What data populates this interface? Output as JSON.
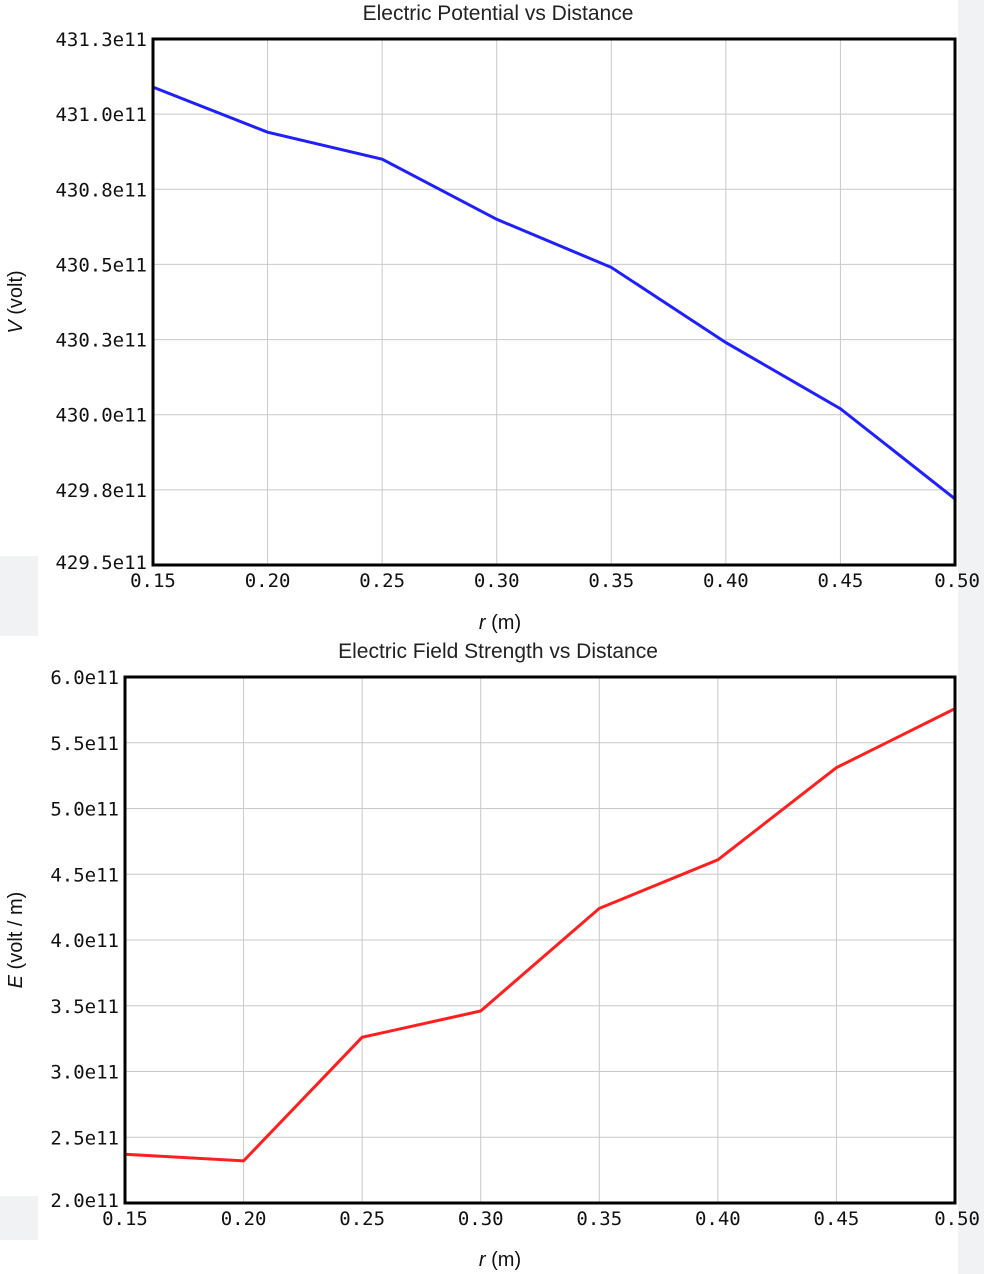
{
  "chart_data": [
    {
      "type": "line",
      "title": "Electric Potential vs Distance",
      "xlabel_var": "r",
      "xlabel_unit": " (m)",
      "ylabel_var": "V",
      "ylabel_unit": " (volt)",
      "x_ticks": [
        "0.15",
        "0.20",
        "0.25",
        "0.30",
        "0.35",
        "0.40",
        "0.45",
        "0.50"
      ],
      "y_ticks": [
        "429.5e11",
        "429.8e11",
        "430.0e11",
        "430.3e11",
        "430.5e11",
        "430.8e11",
        "431.0e11",
        "431.3e11"
      ],
      "xlim": [
        0.15,
        0.5
      ],
      "ylim": [
        42950000000000.0,
        43125000000000.0
      ],
      "grid": true,
      "series": [
        {
          "color": "#1f1fff",
          "x": [
            0.15,
            0.2,
            0.25,
            0.3,
            0.35,
            0.4,
            0.45,
            0.5
          ],
          "y": [
            43109000000000.0,
            43094000000000.0,
            43085000000000.0,
            43065000000000.0,
            43049000000000.0,
            43024000000000.0,
            43002000000000.0,
            42972000000000.0
          ]
        }
      ]
    },
    {
      "type": "line",
      "title": "Electric Field Strength vs Distance",
      "xlabel_var": "r",
      "xlabel_unit": " (m)",
      "ylabel_var": "E",
      "ylabel_unit": " (volt / m)",
      "x_ticks": [
        "0.15",
        "0.20",
        "0.25",
        "0.30",
        "0.35",
        "0.40",
        "0.45",
        "0.50"
      ],
      "y_ticks": [
        "2.0e11",
        "2.5e11",
        "3.0e11",
        "3.5e11",
        "4.0e11",
        "4.5e11",
        "5.0e11",
        "5.5e11",
        "6.0e11"
      ],
      "xlim": [
        0.15,
        0.5
      ],
      "ylim": [
        200000000000.0,
        600000000000.0
      ],
      "grid": true,
      "series": [
        {
          "color": "#ff1f1f",
          "x": [
            0.15,
            0.2,
            0.25,
            0.3,
            0.35,
            0.4,
            0.45,
            0.5
          ],
          "y": [
            237000000000.0,
            232000000000.0,
            326000000000.0,
            346000000000.0,
            424000000000.0,
            461000000000.0,
            531000000000.0,
            576000000000.0
          ]
        }
      ]
    }
  ]
}
